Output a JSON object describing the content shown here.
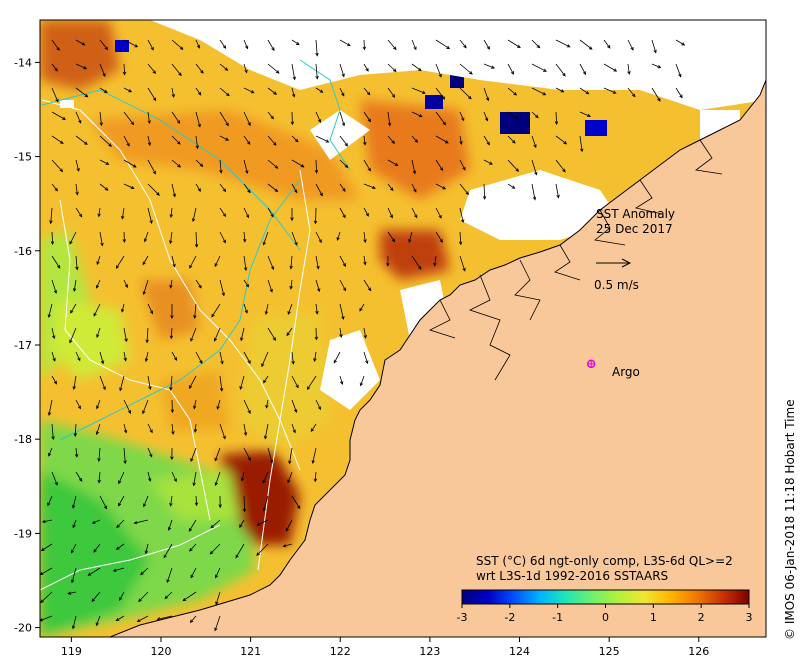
{
  "title": {
    "line1": "SST Anomaly",
    "line2": "25 Dec 2017"
  },
  "vector_scale": {
    "label": "0.5 m/s"
  },
  "argo": {
    "label": "Argo",
    "lon": 124.8,
    "lat": -17.2,
    "color": "#e800e8"
  },
  "description": {
    "line1": "SST (°C) 6d ngt-only comp, L3S-6d QL>=2",
    "line2": "wrt L3S-1d 1992-2016 SSTAARS"
  },
  "credit": "© IMOS 06-Jan-2018 11:18 Hobart Time",
  "axes": {
    "lon_range": [
      118.65,
      126.75
    ],
    "lat_range": [
      -20.1,
      -13.55
    ],
    "x_ticks": [
      {
        "value": 119,
        "label": "119"
      },
      {
        "value": 120,
        "label": "120"
      },
      {
        "value": 121,
        "label": "121"
      },
      {
        "value": 122,
        "label": "122"
      },
      {
        "value": 123,
        "label": "123"
      },
      {
        "value": 124,
        "label": "124"
      },
      {
        "value": 125,
        "label": "125"
      },
      {
        "value": 126,
        "label": "126"
      }
    ],
    "y_ticks": [
      {
        "value": -14,
        "label": "-14"
      },
      {
        "value": -15,
        "label": "-15"
      },
      {
        "value": -16,
        "label": "-16"
      },
      {
        "value": -17,
        "label": "-17"
      },
      {
        "value": -18,
        "label": "-18"
      },
      {
        "value": -19,
        "label": "-19"
      },
      {
        "value": -20,
        "label": "-20"
      }
    ]
  },
  "colorbar": {
    "range": [
      -3,
      3
    ],
    "ticks": [
      {
        "value": -3,
        "label": "-3"
      },
      {
        "value": -2,
        "label": "-2"
      },
      {
        "value": -1,
        "label": "-1"
      },
      {
        "value": 0,
        "label": "0"
      },
      {
        "value": 1,
        "label": "1"
      },
      {
        "value": 2,
        "label": "2"
      },
      {
        "value": 3,
        "label": "3"
      }
    ],
    "stops": [
      "#00007f",
      "#0000c8",
      "#0050ff",
      "#00b4ff",
      "#22e6b4",
      "#6ef06e",
      "#b4f03c",
      "#f0e632",
      "#ffb400",
      "#f07800",
      "#c83200",
      "#7f0000"
    ]
  },
  "colors": {
    "land": "#f9c89a",
    "no_data": "#ffffff",
    "coast": "#000000",
    "contour_a": "#ffffff",
    "contour_b": "#2ec8c8",
    "current_vector": "#000000"
  }
}
